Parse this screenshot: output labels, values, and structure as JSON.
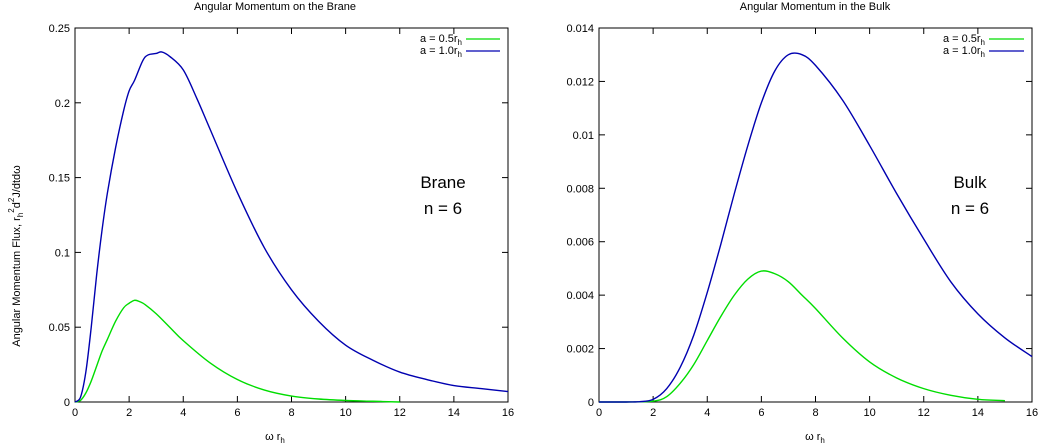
{
  "chart_data": [
    {
      "type": "line",
      "title": "Angular Momentum on the Brane",
      "xlabel": "ω r_h",
      "ylabel": "Angular Momentum Flux, r_h^2 d^2 J/dtdω",
      "xlim": [
        0,
        16
      ],
      "ylim": [
        0,
        0.25
      ],
      "xticks": [
        0,
        2,
        4,
        6,
        8,
        10,
        12,
        14,
        16
      ],
      "yticks": [
        0,
        0.05,
        0.1,
        0.15,
        0.2,
        0.25
      ],
      "ytick_labels": [
        "0",
        "0.05",
        "0.1",
        "0.15",
        "0.2",
        "0.25"
      ],
      "grid": false,
      "legend_position": "top-right",
      "annotations": [
        "Brane",
        "n = 6"
      ],
      "series": [
        {
          "name": "a = 0.5r_h",
          "color": "#00dd00",
          "x": [
            0,
            0.2,
            0.4,
            0.6,
            0.8,
            1.0,
            1.2,
            1.5,
            1.8,
            2.0,
            2.2,
            2.4,
            2.6,
            3.0,
            3.5,
            4.0,
            5.0,
            6.0,
            7.0,
            8.0,
            9.0,
            10.0,
            11.0,
            12.0
          ],
          "y": [
            0,
            0.001,
            0.006,
            0.014,
            0.024,
            0.034,
            0.042,
            0.054,
            0.063,
            0.066,
            0.068,
            0.067,
            0.065,
            0.059,
            0.05,
            0.041,
            0.026,
            0.015,
            0.008,
            0.004,
            0.002,
            0.001,
            0.0005,
            0
          ]
        },
        {
          "name": "a = 1.0r_h",
          "color": "#0000b0",
          "x": [
            0,
            0.2,
            0.4,
            0.6,
            0.8,
            1.0,
            1.2,
            1.5,
            1.8,
            2.0,
            2.2,
            2.5,
            2.7,
            3.0,
            3.2,
            3.5,
            4.0,
            4.5,
            5.0,
            6.0,
            7.0,
            8.0,
            9.0,
            10.0,
            11.0,
            12.0,
            13.0,
            14.0,
            15.0,
            16.0
          ],
          "y": [
            0,
            0.003,
            0.02,
            0.05,
            0.085,
            0.115,
            0.14,
            0.17,
            0.195,
            0.208,
            0.215,
            0.228,
            0.232,
            0.233,
            0.234,
            0.231,
            0.222,
            0.203,
            0.182,
            0.14,
            0.103,
            0.075,
            0.054,
            0.038,
            0.028,
            0.02,
            0.015,
            0.011,
            0.009,
            0.007
          ]
        }
      ]
    },
    {
      "type": "line",
      "title": "Angular Momentum in the Bulk",
      "xlabel": "ω r_h",
      "ylabel": "",
      "xlim": [
        0,
        16
      ],
      "ylim": [
        0,
        0.014
      ],
      "xticks": [
        0,
        2,
        4,
        6,
        8,
        10,
        12,
        14,
        16
      ],
      "yticks": [
        0,
        0.002,
        0.004,
        0.006,
        0.008,
        0.01,
        0.012,
        0.014
      ],
      "ytick_labels": [
        "0",
        "0.002",
        "0.004",
        "0.006",
        "0.008",
        "0.01",
        "0.012",
        "0.014"
      ],
      "grid": false,
      "legend_position": "top-right",
      "annotations": [
        "Bulk",
        "n = 6"
      ],
      "series": [
        {
          "name": "a = 0.5r_h",
          "color": "#00dd00",
          "x": [
            0,
            1.0,
            2.0,
            2.5,
            3.0,
            3.5,
            4.0,
            4.5,
            5.0,
            5.5,
            6.0,
            6.5,
            7.0,
            7.5,
            8.0,
            9.0,
            10.0,
            11.0,
            12.0,
            13.0,
            14.0,
            15.0
          ],
          "y": [
            0,
            0,
            3e-05,
            0.0002,
            0.0007,
            0.0014,
            0.0023,
            0.0032,
            0.004,
            0.0046,
            0.0049,
            0.0048,
            0.0045,
            0.004,
            0.0035,
            0.0024,
            0.0015,
            0.0009,
            0.0005,
            0.00025,
            0.0001,
            5e-05
          ]
        },
        {
          "name": "a = 1.0r_h",
          "color": "#0000b0",
          "x": [
            0,
            1.0,
            1.5,
            2.0,
            2.5,
            3.0,
            3.5,
            4.0,
            4.5,
            5.0,
            5.5,
            6.0,
            6.5,
            7.0,
            7.5,
            8.0,
            9.0,
            10.0,
            11.0,
            12.0,
            13.0,
            14.0,
            15.0,
            16.0
          ],
          "y": [
            0,
            0,
            1e-05,
            0.0001,
            0.0005,
            0.0013,
            0.0025,
            0.0041,
            0.0059,
            0.0078,
            0.0096,
            0.0112,
            0.0124,
            0.013,
            0.013,
            0.0126,
            0.0113,
            0.0096,
            0.0078,
            0.0061,
            0.0045,
            0.0033,
            0.0024,
            0.0017
          ]
        }
      ]
    }
  ]
}
